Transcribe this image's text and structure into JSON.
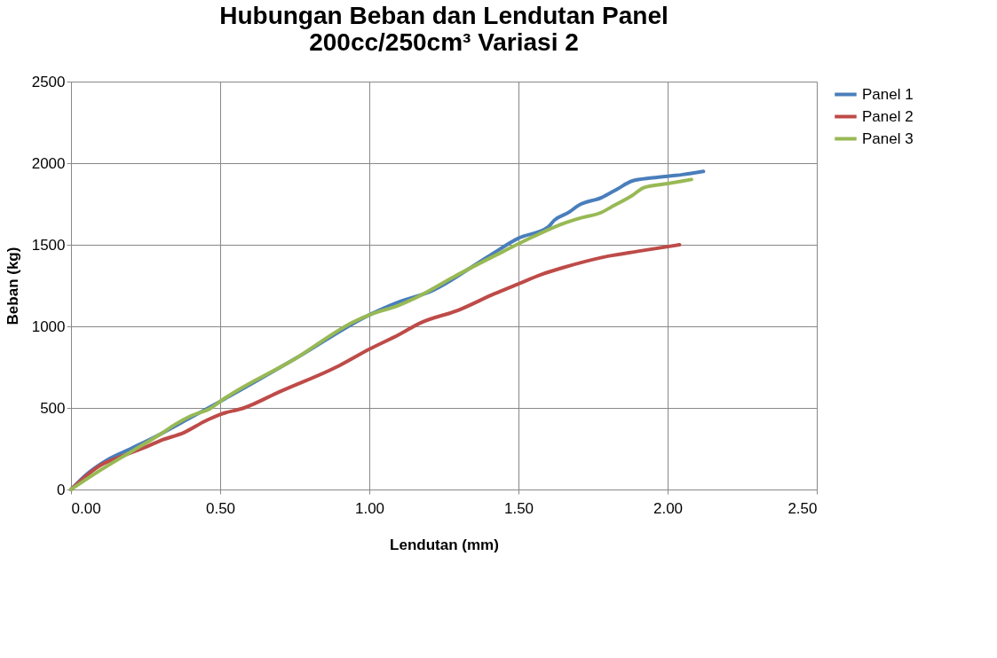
{
  "chart_data": {
    "type": "line",
    "title": "Hubungan Beban dan Lendutan Panel\n200cc/250cm³ Variasi 2",
    "xlabel": "Lendutan (mm)",
    "ylabel": "Beban (kg)",
    "xlim": [
      0,
      2.5
    ],
    "xticks": [
      {
        "value": 0,
        "label": "0.00"
      },
      {
        "value": 0.5,
        "label": "0.50"
      },
      {
        "value": 1,
        "label": "1.00"
      },
      {
        "value": 1.5,
        "label": "1.50"
      },
      {
        "value": 2,
        "label": "2.00"
      },
      {
        "value": 2.5,
        "label": "2.50"
      }
    ],
    "ylim": [
      0,
      2500
    ],
    "yticks": [
      0,
      500,
      1000,
      1500,
      2000,
      2500
    ],
    "grid": true,
    "legend": "right",
    "marker": "none",
    "line_style": "solid",
    "series": [
      {
        "name": "Panel 1",
        "color": "#4a7ebb",
        "x": [
          0,
          0.05,
          0.12,
          0.2,
          0.3,
          0.4,
          0.5,
          0.75,
          1.0,
          1.1,
          1.2,
          1.4,
          1.5,
          1.6,
          1.62,
          1.67,
          1.7,
          1.78,
          1.83,
          1.88,
          1.95,
          2.05,
          2.12
        ],
        "values": [
          0,
          90,
          180,
          250,
          340,
          440,
          540,
          800,
          1070,
          1150,
          1210,
          1430,
          1540,
          1610,
          1650,
          1700,
          1740,
          1790,
          1840,
          1890,
          1910,
          1930,
          1950
        ]
      },
      {
        "name": "Panel 2",
        "color": "#be4b48",
        "x": [
          0,
          0.1,
          0.15,
          0.25,
          0.3,
          0.38,
          0.45,
          0.5,
          0.58,
          0.7,
          0.9,
          1.0,
          1.1,
          1.17,
          1.3,
          1.42,
          1.5,
          1.58,
          1.65,
          1.8,
          1.9,
          2.04
        ],
        "values": [
          0,
          150,
          190,
          260,
          300,
          350,
          420,
          460,
          500,
          600,
          760,
          860,
          950,
          1020,
          1100,
          1200,
          1260,
          1320,
          1360,
          1430,
          1460,
          1500
        ]
      },
      {
        "name": "Panel 3",
        "color": "#98b954",
        "x": [
          0,
          0.1,
          0.2,
          0.3,
          0.35,
          0.4,
          0.47,
          0.5,
          0.75,
          0.95,
          1.0,
          1.1,
          1.15,
          1.3,
          1.45,
          1.55,
          1.65,
          1.7,
          1.78,
          1.82,
          1.88,
          1.92,
          2.0,
          2.08
        ],
        "values": [
          0,
          120,
          230,
          340,
          400,
          450,
          500,
          540,
          800,
          1030,
          1070,
          1130,
          1170,
          1320,
          1460,
          1550,
          1630,
          1660,
          1700,
          1740,
          1800,
          1850,
          1875,
          1900
        ]
      }
    ]
  }
}
